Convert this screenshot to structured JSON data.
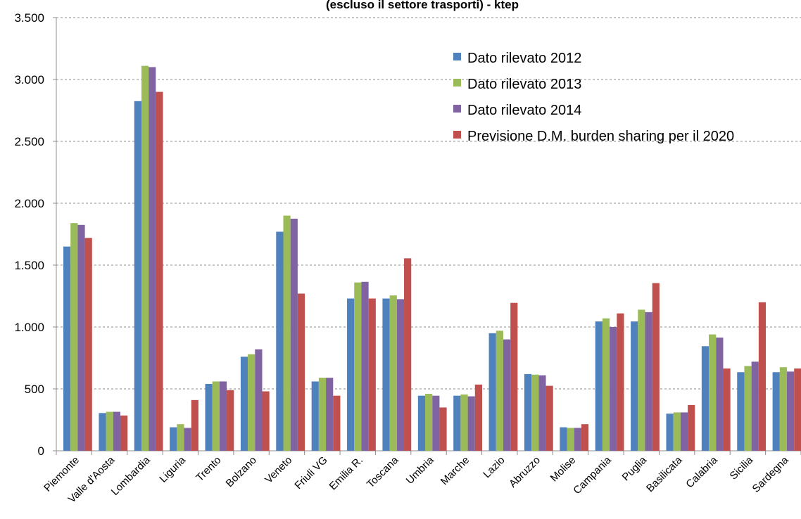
{
  "chart_data": {
    "type": "bar",
    "title": "(escluso il settore trasporti) - ktep",
    "xlabel": "",
    "ylabel": "",
    "ylim": [
      0,
      3500
    ],
    "yticks": [
      0,
      500,
      1000,
      1500,
      2000,
      2500,
      3000,
      3500
    ],
    "ytick_labels": [
      "0",
      "500",
      "1.000",
      "1.500",
      "2.000",
      "2.500",
      "3.000",
      "3.500"
    ],
    "grid": true,
    "legend_position": "top-right",
    "categories": [
      "Piemonte",
      "Valle d'Aosta",
      "Lombardia",
      "Liguria",
      "Trento",
      "Bolzano",
      "Veneto",
      "Friuli VG",
      "Emilia R.",
      "Toscana",
      "Umbria",
      "Marche",
      "Lazio",
      "Abruzzo",
      "Molise",
      "Campania",
      "Puglia",
      "Basilicata",
      "Calabria",
      "Sicilia",
      "Sardegna"
    ],
    "series": [
      {
        "name": "Dato rilevato 2012",
        "color": "#4F81BD",
        "values": [
          1650,
          305,
          2825,
          190,
          540,
          760,
          1770,
          560,
          1230,
          1230,
          445,
          445,
          950,
          620,
          190,
          1045,
          1045,
          300,
          845,
          635,
          635
        ]
      },
      {
        "name": "Dato rilevato 2013",
        "color": "#9BBB59",
        "values": [
          1840,
          315,
          3110,
          215,
          560,
          780,
          1900,
          590,
          1360,
          1255,
          460,
          455,
          970,
          615,
          185,
          1070,
          1140,
          310,
          940,
          685,
          675
        ]
      },
      {
        "name": "Dato rilevato 2014",
        "color": "#8064A2",
        "values": [
          1825,
          315,
          3100,
          185,
          560,
          820,
          1875,
          590,
          1365,
          1225,
          445,
          440,
          900,
          610,
          185,
          1000,
          1120,
          310,
          915,
          720,
          640
        ]
      },
      {
        "name": "Previsione D.M. burden sharing per il 2020",
        "color": "#C0504D",
        "values": [
          1720,
          285,
          2900,
          410,
          490,
          480,
          1270,
          445,
          1230,
          1555,
          350,
          535,
          1195,
          525,
          215,
          1110,
          1355,
          370,
          665,
          1200,
          665
        ]
      }
    ]
  }
}
